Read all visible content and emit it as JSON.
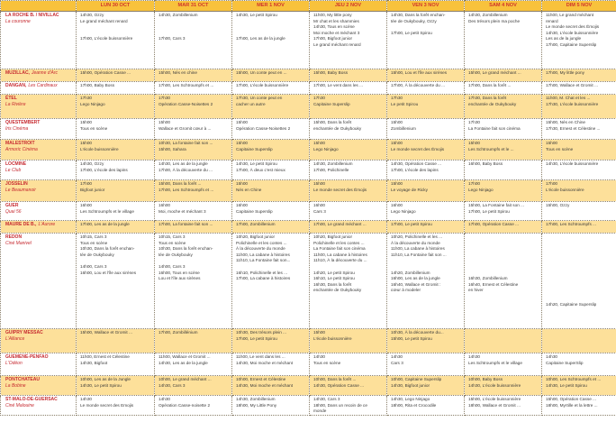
{
  "days": [
    "LUN 30 OCT",
    "MAR 31 OCT",
    "MER 1 NOV",
    "JEU 2 NOV",
    "VEN 3 NOV",
    "SAM 4 NOV",
    "DIM 5 NOV"
  ],
  "colors": {
    "header_bg": "#f8c23c",
    "row_alt_bg": "#fde09a",
    "venue_text": "#c62a30"
  },
  "venues": [
    {
      "name": "LA ROCHE B. / NIVILLAC",
      "cinema": "La couronne",
      "inline": false,
      "alt": false,
      "cells": [
        [
          "14h30, Ozzy",
          "Le grand méchant renard",
          "",
          "",
          "17h00, L'école buissonnière"
        ],
        [
          "14h30, Zombillenium",
          "",
          "",
          "",
          "17h00, Cars 3"
        ],
        [
          "14h30, Le petit Spirou",
          "",
          "",
          "",
          "17h00, Les as de la jungle"
        ],
        [
          "11h00, My little pony",
          "Mr chat et les shammies",
          "14h30, Tous en scène",
          "Moi moche et méchant 3",
          "17h00, Bigfoot junior",
          "Le grand méchant renard"
        ],
        [
          "14h30, Dans la forêt enchan-",
          "tée de Oukybouky, Ozzy",
          "",
          "17h00, Le petit Spirou"
        ],
        [
          "14h30, Zombillenium",
          "Des trésors plein ma poche"
        ],
        [
          "11h00, Le grand méchant",
          "renard",
          "Le monde secret des Émojis",
          "14h30, L'école buissonnière",
          "Les as de la jungle",
          "17h00, Capitaine Superslip"
        ]
      ]
    },
    {
      "name": "MUZILLAC,",
      "cinema": "Jeanne d'Arc",
      "inline": true,
      "alt": true,
      "cells": [
        [
          "15h00, Opération Casse ..."
        ],
        [
          "15h00, Nés en chine"
        ],
        [
          "15h00, Un conte peut en ..."
        ],
        [
          "15h00, Baby Boss"
        ],
        [
          "15h00, Lou et l'île aux sirènes"
        ],
        [
          "15h00, Le grand méchant ..."
        ],
        [
          "17h00, My little pony"
        ]
      ]
    },
    {
      "name": "DANGAN,",
      "cinema": "Les Cardinaux",
      "inline": true,
      "alt": false,
      "cells": [
        [
          "17h00, Baby Boss"
        ],
        [
          "17h00, Les Schtroumpfs et ..."
        ],
        [
          "17h00, L'école buissonnière"
        ],
        [
          "17h00, Le vent dans les ..."
        ],
        [
          "17h00, À la découverte du ..."
        ],
        [
          "17h00, Dans la forêt ..."
        ],
        [
          "17h00, Wallace et Gromit ..."
        ]
      ]
    },
    {
      "name": "ÉTEL",
      "cinema": "La Rivière",
      "inline": false,
      "alt": true,
      "cells": [
        [
          "17h30",
          "Lego Ninjago"
        ],
        [
          "17h30",
          "Opération Casse-Noisettes 2"
        ],
        [
          "17h30, Un conte peut en",
          "cacher un autre"
        ],
        [
          "17h30",
          "Capitaine Superslip"
        ],
        [
          "17h30",
          "Le petit Spirou"
        ],
        [
          "17h30, Dans la forêt",
          "enchantée de Oukybouky"
        ],
        [
          "11h00, M. Chat et les ...",
          "17h30, L'école buissonnière"
        ]
      ]
    },
    {
      "name": "QUESTEMBERT",
      "cinema": "Iris Cinéma",
      "inline": false,
      "alt": false,
      "cells": [
        [
          "15h00",
          "Tous en scène"
        ],
        [
          "15h00",
          "Wallace et Gromit cœur à ..."
        ],
        [
          "15h00",
          "Opération Casse-Noisettes 2"
        ],
        [
          "15h00, Dans la forêt",
          "enchantée de Oukybouky"
        ],
        [
          "15h00",
          "Zombillenium"
        ],
        [
          "17h30",
          "La Fontaine fait son cinéma"
        ],
        [
          "15h00, Nés en Chine",
          "17h30, Ernest et Célestine ..."
        ]
      ]
    },
    {
      "name": "MALESTROIT",
      "cinema": "Armoric Cinéma",
      "inline": false,
      "alt": true,
      "cells": [
        [
          "15h00",
          "L'école buissonnière"
        ],
        [
          "10h30, La fontaine fait son ...",
          "15h00, Sahara"
        ],
        [
          "15h00",
          "Capitaine Superslip"
        ],
        [
          "15h00",
          "Lego Ninjago"
        ],
        [
          "15h00",
          "Le monde secret des Émojis"
        ],
        [
          "15h00",
          "Les Schtroumpfs et le ..."
        ],
        [
          "15h00",
          "Tous en scène"
        ]
      ]
    },
    {
      "name": "LOCMINE",
      "cinema": "Le Club",
      "inline": false,
      "alt": false,
      "cells": [
        [
          "14h30, Ozzy",
          "17h00, L'école des lapins"
        ],
        [
          "14h30, Les as de la jungle",
          "17h00, À la découverte du ..."
        ],
        [
          "14h30, Le petit Spirou",
          "17h00, À deux c'est mieux"
        ],
        [
          "14h30, Zombillenium",
          "17h00, Polichinelle"
        ],
        [
          "14h30, Opération Casse ...",
          "17h00, L'école des lapins"
        ],
        [
          "16h00, Baby Boss"
        ],
        [
          "14h30, L'école buissonnière"
        ]
      ]
    },
    {
      "name": "JOSSELIN",
      "cinema": "Le Beaumanoir",
      "inline": false,
      "alt": true,
      "cells": [
        [
          "17h00",
          "Bigfoot junior"
        ],
        [
          "15h00, Dans la forêt ...",
          "17h00, Les Schtroumpfs et ..."
        ],
        [
          "15h00",
          "Nés en Chine"
        ],
        [
          "15h00",
          "Le monde secret des Émojis"
        ],
        [
          "15h00",
          "Le voyage de Ricky"
        ],
        [
          "17h00",
          "Lego Ninjago"
        ],
        [
          "17h00",
          "L'école buissonnière"
        ]
      ]
    },
    {
      "name": "GUER",
      "cinema": "Quai 56",
      "inline": false,
      "alt": false,
      "cells": [
        [
          "16h00",
          "Les Schtroumpfs et le village"
        ],
        [
          "16h00",
          "Moi, moche et méchant 3"
        ],
        [
          "16h00",
          "Capitaine Superslip"
        ],
        [
          "16h00",
          "Cars 3"
        ],
        [
          "16h00",
          "Lego Ninjago"
        ],
        [
          "15h00, La Fontaine fait son ...",
          "17h00, Le petit Spirou"
        ],
        [
          "15h00, Ozzy"
        ]
      ]
    },
    {
      "name": "MAURE DE B.,",
      "cinema": "L'Aurore",
      "inline": true,
      "alt": true,
      "cells": [
        [
          "17h00, Les as de la jungle"
        ],
        [
          "17h00, La fontaine fait son ..."
        ],
        [
          "17h00, Zombillenium"
        ],
        [
          "17h00, Le grand méchant ..."
        ],
        [
          "17h00, Le petit Spirou"
        ],
        [
          "17h00, Opération Casse ..."
        ],
        [
          "17h00, Les Schtroumpfs ..."
        ]
      ]
    },
    {
      "name": "REDON",
      "cinema": "Ciné Manivel",
      "inline": false,
      "alt": false,
      "cells": [
        [
          "10h15, Cars 3",
          "Tous en scène",
          "10h30, Dans la forêt enchan-",
          "tée de Oukybouky",
          "",
          "14h00, Cars 3",
          "16h00, Lou et l'île aux sirènes"
        ],
        [
          "10h15, Cars 3",
          "Tous en scène",
          "10h30, Dans la forêt enchan-",
          "tée de Oukybouky",
          "",
          "14h00, Cars 3",
          "16h00, Tous en scène",
          "Lou et l'île aux sirènes"
        ],
        [
          "10h20, Bigfoot junior",
          "Polichinelle et les contes ...",
          "À la découverte du monde",
          "11h00, La cabane à histoires",
          "11h10, La Fontaine fait son...",
          "",
          "16h10, Polichinelle et les ...",
          "17h00, La cabane à histoires"
        ],
        [
          "10h20, Bigfoot junior",
          "Polichinelle et les contes ...",
          "La Fontaine fait son cinéma",
          "11h00, La cabane à histoires",
          "11h10, À la découverte du ...",
          "",
          "14h20, Le petit Spirou",
          "16h10, Le petit Spirou",
          "16h30, Dans la forêt",
          "enchantée de Oukybouky"
        ],
        [
          "10h20, Polichinelle et les ...",
          "À la découverte du monde",
          "11h00, La cabane à histoires",
          "11h10, La Fontaine fait son ...",
          "",
          "",
          "14h20, Zombillenium",
          "16h00, Les as de la jungle",
          "16h40, Wallace et Gromit :",
          "cœur à modeler"
        ],
        [
          "",
          "",
          "",
          "",
          "",
          "",
          "",
          "16h30, Zombillenium",
          "16h40, Ernest et Célestine",
          "en hiver"
        ],
        [
          "",
          "",
          "",
          "",
          "",
          "",
          "",
          "",
          "14h20, Capitaine Superslip"
        ]
      ]
    },
    {
      "name": "GUIPRY MESSAC",
      "cinema": "L'Alliance",
      "inline": false,
      "alt": true,
      "cells": [
        [
          "15h00, Wallace et Gromit ..."
        ],
        [
          "17h00, Zombillénium"
        ],
        [
          "10h30, Des trésors plein ...",
          "17h00, Le petit Spirou"
        ],
        [
          "15h00",
          "L'école buissonnière"
        ],
        [
          "10h30, À la découverte du...",
          "15h00, Le petit Spirou"
        ],
        [],
        []
      ]
    },
    {
      "name": "GUEMENE-PENFAO",
      "cinema": "L'Odéon",
      "inline": false,
      "alt": false,
      "cells": [
        [
          "11h00, Ernest et Célestine",
          "14h30, Bigfoot"
        ],
        [
          "11h00, Wallace et Gromit ...",
          "14h30, Les as de la jungle"
        ],
        [
          "11h00, Le vent dans les ...",
          "14h30, Moi moche et méchant"
        ],
        [
          "14h30",
          "Tous en scène"
        ],
        [
          "14h30",
          "Cars 3"
        ],
        [
          "14h30",
          "Les Schtroumpfs et le village"
        ],
        [
          "14h30",
          "Capitaine SuperSlip"
        ]
      ]
    },
    {
      "name": "PONTCHATEAU",
      "cinema": "La Bobine",
      "inline": false,
      "alt": true,
      "cells": [
        [
          "10h00, Les as de la Jungle",
          "14h30, Le petit Spirou"
        ],
        [
          "10h00, Le grand méchant ...",
          "14h30, Cars 3"
        ],
        [
          "10h00, Ernest et Célestine",
          "14h30, Moi moche et méchant"
        ],
        [
          "10h00, Dans la forêt ...",
          "14h30, Opération Casse ..."
        ],
        [
          "10h00, Capitaine Superslip",
          "14h30, Bigfoot junior"
        ],
        [
          "10h00, Baby Boss",
          "14h30, L'école buissonnière"
        ],
        [
          "10h00, Les Schtroumpfs et ...",
          "14h30, Le petit Spirou"
        ]
      ]
    },
    {
      "name": "ST-MALO-DE-GUERSAC",
      "cinema": "Ciné Malouine",
      "inline": false,
      "alt": false,
      "cells": [
        [
          "14h30",
          "Le monde secret des Emojis"
        ],
        [
          "14h30",
          "Opération Casse-noisette 2"
        ],
        [
          "14h30, Zombillenium",
          "18h00, My Little Pony"
        ],
        [
          "14h30, Cars 3",
          "18h00, Dans un recoin de ce",
          "monde"
        ],
        [
          "14h30, Lego Ninjago",
          "18h00, Rita et Crocodile"
        ],
        [
          "15h00, L'école buissonnière",
          "18h00, Wallace et Gromit ..."
        ],
        [
          "15h00, Opération Casse ...",
          "18h00, Myrtille et la lettre ..."
        ]
      ]
    }
  ]
}
